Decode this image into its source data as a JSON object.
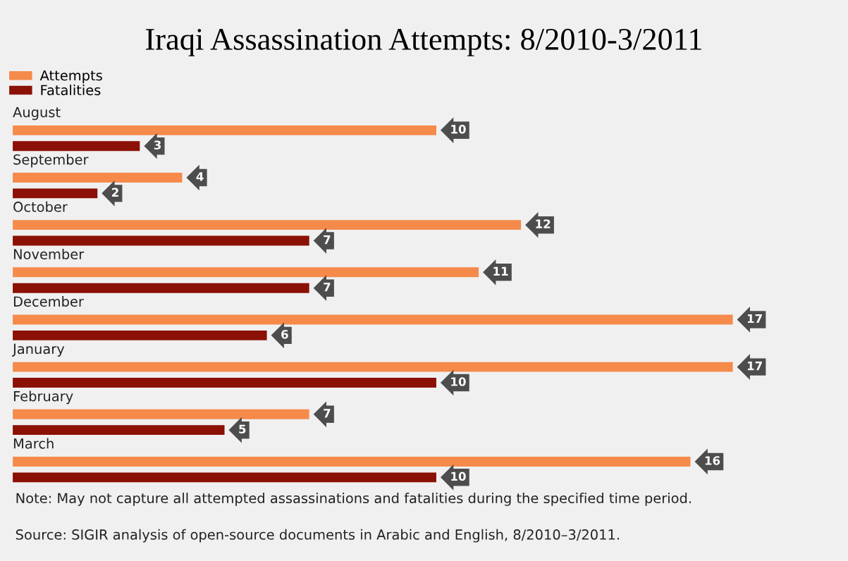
{
  "chart_data": {
    "type": "bar",
    "orientation": "horizontal",
    "title": "Iraqi Assassination Attempts: 8/2010-3/2011",
    "categories": [
      "August",
      "September",
      "October",
      "November",
      "December",
      "January",
      "February",
      "March"
    ],
    "series": [
      {
        "name": "Attempts",
        "color": "#f58a4b",
        "values": [
          10,
          4,
          12,
          11,
          17,
          17,
          7,
          16
        ]
      },
      {
        "name": "Fatalities",
        "color": "#8b1005",
        "values": [
          3,
          2,
          7,
          7,
          6,
          10,
          5,
          10
        ]
      }
    ],
    "data_labels": true,
    "legend": "top left",
    "annotations": [
      "Note: May not capture all attempted assassinations and fatalities during the specified time period.",
      "Source: SIGIR analysis of open-source documents in Arabic and English, 8/2010–3/2011."
    ]
  }
}
